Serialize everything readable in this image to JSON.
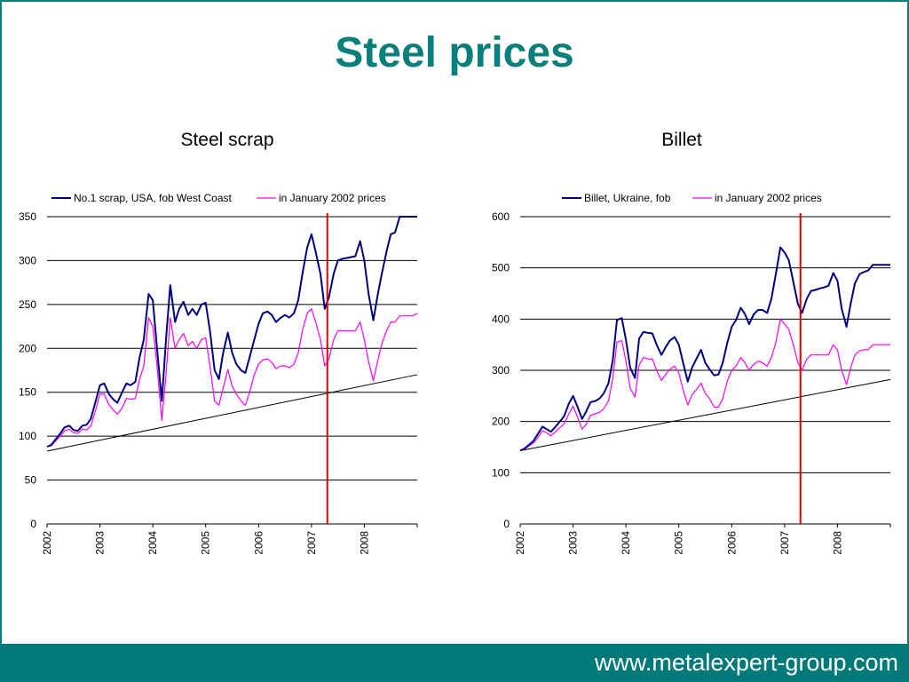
{
  "slide": {
    "title": "Steel prices",
    "footer_url": "www.metalexpert-group.com",
    "accent_color": "#0b7f7a",
    "footer_color": "#007a78"
  },
  "chart_data": [
    {
      "type": "line",
      "title": "Steel scrap",
      "xlabel": "",
      "ylabel": "",
      "xlim": [
        2002,
        2009
      ],
      "ylim": [
        0,
        350
      ],
      "yticks": [
        0,
        50,
        100,
        150,
        200,
        250,
        300,
        350
      ],
      "xticks": [
        "2002",
        "2003",
        "2004",
        "2005",
        "2006",
        "2007",
        "2008"
      ],
      "grid": true,
      "legend": "top",
      "marker_x": 2007.3,
      "trendline": [
        [
          2002,
          83
        ],
        [
          2009,
          170
        ]
      ],
      "series": [
        {
          "name": "No.1 scrap, USA, fob West Coast",
          "color": "#000080",
          "x": [
            2002.0,
            2002.08,
            2002.17,
            2002.25,
            2002.33,
            2002.42,
            2002.5,
            2002.58,
            2002.67,
            2002.75,
            2002.83,
            2002.92,
            2003.0,
            2003.08,
            2003.17,
            2003.25,
            2003.33,
            2003.42,
            2003.5,
            2003.58,
            2003.67,
            2003.75,
            2003.83,
            2003.92,
            2004.0,
            2004.08,
            2004.17,
            2004.25,
            2004.33,
            2004.42,
            2004.5,
            2004.58,
            2004.67,
            2004.75,
            2004.83,
            2004.92,
            2005.0,
            2005.08,
            2005.17,
            2005.25,
            2005.33,
            2005.42,
            2005.5,
            2005.58,
            2005.67,
            2005.75,
            2005.83,
            2005.92,
            2006.0,
            2006.08,
            2006.17,
            2006.25,
            2006.33,
            2006.42,
            2006.5,
            2006.58,
            2006.67,
            2006.75,
            2006.83,
            2006.92,
            2007.0,
            2007.08,
            2007.17,
            2007.25,
            2007.33,
            2007.42,
            2007.5,
            2007.58,
            2007.67,
            2007.75,
            2007.83,
            2007.92,
            2008.0,
            2008.08,
            2008.17,
            2008.25,
            2008.33,
            2008.42,
            2008.5,
            2008.58,
            2008.67,
            2008.75,
            2008.83,
            2008.92,
            2009.0
          ],
          "y": [
            88,
            90,
            97,
            103,
            110,
            112,
            107,
            106,
            112,
            113,
            120,
            140,
            158,
            160,
            148,
            142,
            138,
            150,
            160,
            158,
            162,
            190,
            210,
            262,
            255,
            200,
            140,
            210,
            272,
            230,
            245,
            253,
            238,
            245,
            238,
            250,
            252,
            220,
            175,
            165,
            195,
            218,
            195,
            182,
            175,
            172,
            190,
            210,
            228,
            240,
            242,
            238,
            230,
            235,
            238,
            235,
            240,
            255,
            285,
            315,
            330,
            310,
            285,
            245,
            258,
            285,
            300,
            302,
            303,
            304,
            305,
            322,
            300,
            262,
            232,
            260,
            285,
            310,
            330,
            332,
            350,
            350,
            350,
            350,
            350
          ]
        },
        {
          "name": "in January 2002 prices",
          "color": "#ff00ff",
          "x": [
            2002.0,
            2002.08,
            2002.17,
            2002.25,
            2002.33,
            2002.42,
            2002.5,
            2002.58,
            2002.67,
            2002.75,
            2002.83,
            2002.92,
            2003.0,
            2003.08,
            2003.17,
            2003.25,
            2003.33,
            2003.42,
            2003.5,
            2003.58,
            2003.67,
            2003.75,
            2003.83,
            2003.92,
            2004.0,
            2004.08,
            2004.17,
            2004.25,
            2004.33,
            2004.42,
            2004.5,
            2004.58,
            2004.67,
            2004.75,
            2004.83,
            2004.92,
            2005.0,
            2005.08,
            2005.17,
            2005.25,
            2005.33,
            2005.42,
            2005.5,
            2005.58,
            2005.67,
            2005.75,
            2005.83,
            2005.92,
            2006.0,
            2006.08,
            2006.17,
            2006.25,
            2006.33,
            2006.42,
            2006.5,
            2006.58,
            2006.67,
            2006.75,
            2006.83,
            2006.92,
            2007.0,
            2007.08,
            2007.17,
            2007.25,
            2007.33,
            2007.42,
            2007.5,
            2007.58,
            2007.67,
            2007.75,
            2007.83,
            2007.92,
            2008.0,
            2008.08,
            2008.17,
            2008.25,
            2008.33,
            2008.42,
            2008.5,
            2008.58,
            2008.67,
            2008.75,
            2008.83,
            2008.92,
            2009.0
          ],
          "y": [
            88,
            89,
            95,
            100,
            106,
            108,
            104,
            103,
            108,
            107,
            112,
            130,
            148,
            148,
            136,
            130,
            125,
            132,
            143,
            142,
            143,
            165,
            180,
            235,
            225,
            180,
            118,
            170,
            235,
            200,
            210,
            217,
            203,
            208,
            200,
            210,
            212,
            180,
            140,
            135,
            155,
            176,
            157,
            148,
            140,
            135,
            150,
            170,
            182,
            187,
            188,
            184,
            177,
            180,
            180,
            178,
            182,
            195,
            220,
            240,
            245,
            230,
            210,
            180,
            188,
            210,
            220,
            220,
            220,
            220,
            220,
            230,
            210,
            185,
            163,
            185,
            205,
            220,
            230,
            230,
            237,
            237,
            237,
            237,
            240
          ]
        }
      ]
    },
    {
      "type": "line",
      "title": "Billet",
      "xlabel": "",
      "ylabel": "",
      "xlim": [
        2002,
        2009
      ],
      "ylim": [
        0,
        600
      ],
      "yticks": [
        0,
        100,
        200,
        300,
        400,
        500,
        600
      ],
      "xticks": [
        "2002",
        "2003",
        "2004",
        "2005",
        "2006",
        "2007",
        "2008"
      ],
      "grid": true,
      "legend": "top",
      "marker_x": 2007.3,
      "trendline": [
        [
          2002,
          143
        ],
        [
          2009,
          282
        ]
      ],
      "series": [
        {
          "name": "Billet, Ukraine, fob",
          "color": "#000080",
          "x": [
            2002.0,
            2002.08,
            2002.17,
            2002.25,
            2002.33,
            2002.42,
            2002.5,
            2002.58,
            2002.67,
            2002.75,
            2002.83,
            2002.92,
            2003.0,
            2003.08,
            2003.17,
            2003.25,
            2003.33,
            2003.42,
            2003.5,
            2003.58,
            2003.67,
            2003.75,
            2003.83,
            2003.92,
            2004.0,
            2004.08,
            2004.17,
            2004.25,
            2004.33,
            2004.42,
            2004.5,
            2004.58,
            2004.67,
            2004.75,
            2004.83,
            2004.92,
            2005.0,
            2005.08,
            2005.17,
            2005.25,
            2005.33,
            2005.42,
            2005.5,
            2005.58,
            2005.67,
            2005.75,
            2005.83,
            2005.92,
            2006.0,
            2006.08,
            2006.17,
            2006.25,
            2006.33,
            2006.42,
            2006.5,
            2006.58,
            2006.67,
            2006.75,
            2006.83,
            2006.92,
            2007.0,
            2007.08,
            2007.17,
            2007.25,
            2007.33,
            2007.42,
            2007.5,
            2007.58,
            2007.67,
            2007.75,
            2007.83,
            2007.92,
            2008.0,
            2008.08,
            2008.17,
            2008.25,
            2008.33,
            2008.42,
            2008.5,
            2008.58,
            2008.67,
            2008.75,
            2008.83,
            2008.92,
            2009.0
          ],
          "y": [
            143,
            147,
            155,
            162,
            175,
            190,
            185,
            180,
            190,
            200,
            210,
            235,
            250,
            230,
            205,
            220,
            238,
            240,
            245,
            255,
            275,
            320,
            398,
            402,
            360,
            305,
            285,
            362,
            375,
            373,
            372,
            350,
            330,
            345,
            358,
            365,
            350,
            315,
            278,
            305,
            322,
            340,
            315,
            302,
            290,
            292,
            315,
            355,
            385,
            398,
            422,
            410,
            390,
            410,
            418,
            418,
            412,
            440,
            485,
            540,
            530,
            515,
            470,
            430,
            412,
            440,
            455,
            457,
            460,
            462,
            465,
            490,
            475,
            420,
            385,
            430,
            470,
            488,
            492,
            495,
            506,
            506,
            506,
            506,
            506
          ]
        },
        {
          "name": "in January 2002 prices",
          "color": "#ff00ff",
          "x": [
            2002.0,
            2002.08,
            2002.17,
            2002.25,
            2002.33,
            2002.42,
            2002.5,
            2002.58,
            2002.67,
            2002.75,
            2002.83,
            2002.92,
            2003.0,
            2003.08,
            2003.17,
            2003.25,
            2003.33,
            2003.42,
            2003.5,
            2003.58,
            2003.67,
            2003.75,
            2003.83,
            2003.92,
            2004.0,
            2004.08,
            2004.17,
            2004.25,
            2004.33,
            2004.42,
            2004.5,
            2004.58,
            2004.67,
            2004.75,
            2004.83,
            2004.92,
            2005.0,
            2005.08,
            2005.17,
            2005.25,
            2005.33,
            2005.42,
            2005.5,
            2005.58,
            2005.67,
            2005.75,
            2005.83,
            2005.92,
            2006.0,
            2006.08,
            2006.17,
            2006.25,
            2006.33,
            2006.42,
            2006.5,
            2006.58,
            2006.67,
            2006.75,
            2006.83,
            2006.92,
            2007.0,
            2007.08,
            2007.17,
            2007.25,
            2007.33,
            2007.42,
            2007.5,
            2007.58,
            2007.67,
            2007.75,
            2007.83,
            2007.92,
            2008.0,
            2008.08,
            2008.17,
            2008.25,
            2008.33,
            2008.42,
            2008.5,
            2008.58,
            2008.67,
            2008.75,
            2008.83,
            2008.92,
            2009.0
          ],
          "y": [
            143,
            146,
            152,
            158,
            168,
            182,
            178,
            172,
            180,
            188,
            195,
            215,
            230,
            210,
            185,
            195,
            212,
            215,
            218,
            225,
            240,
            285,
            355,
            358,
            318,
            265,
            248,
            310,
            325,
            322,
            322,
            300,
            280,
            292,
            302,
            308,
            295,
            262,
            232,
            252,
            262,
            275,
            255,
            245,
            228,
            228,
            245,
            280,
            300,
            308,
            325,
            315,
            300,
            312,
            318,
            315,
            308,
            325,
            352,
            400,
            390,
            380,
            348,
            315,
            300,
            322,
            330,
            330,
            330,
            330,
            330,
            350,
            340,
            300,
            272,
            305,
            330,
            338,
            340,
            340,
            350,
            350,
            350,
            350,
            350
          ]
        }
      ]
    }
  ]
}
